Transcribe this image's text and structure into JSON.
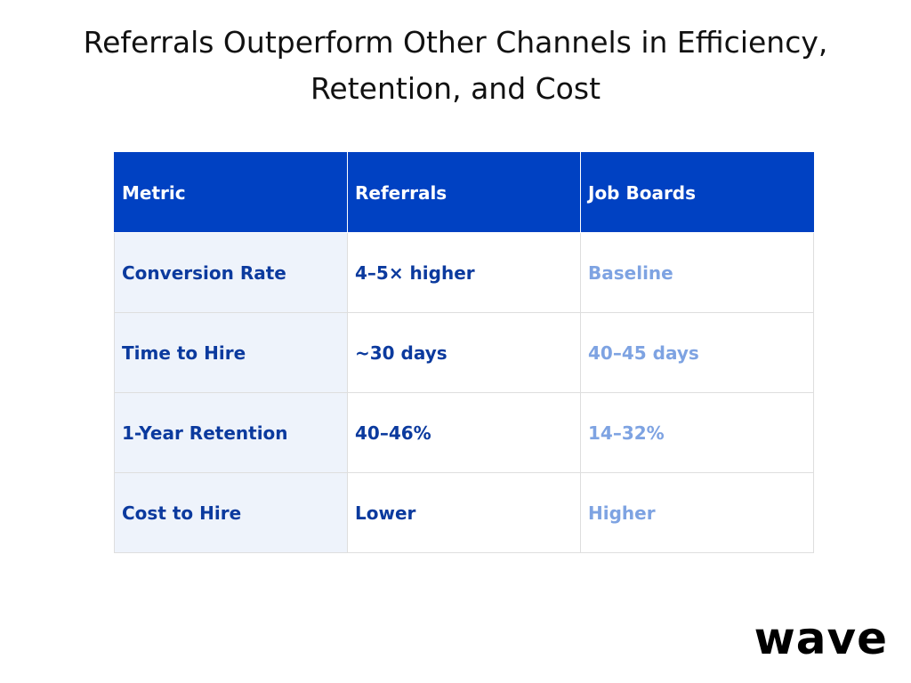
{
  "title": "Referrals Outperform Other Channels in Efficiency, Retention, and Cost",
  "chart_data": {
    "type": "table",
    "title": "Referrals Outperform Other Channels in Efficiency, Retention, and Cost",
    "columns": [
      "Metric",
      "Referrals",
      "Job Boards"
    ],
    "rows": [
      {
        "metric": "Conversion Rate",
        "referrals": "4–5× higher",
        "job_boards": "Baseline"
      },
      {
        "metric": "Time to Hire",
        "referrals": "~30 days",
        "job_boards": "40–45 days"
      },
      {
        "metric": "1-Year Retention",
        "referrals": "40–46%",
        "job_boards": "14–32%"
      },
      {
        "metric": "Cost to Hire",
        "referrals": "Lower",
        "job_boards": "Higher"
      }
    ]
  },
  "colors": {
    "header_bg": "#0041c2",
    "header_text": "#ffffff",
    "metric_bg": "#eef3fb",
    "dark_blue_text": "#0b3a9e",
    "light_blue_text": "#7ea3e2"
  },
  "logo": {
    "text": "wave"
  }
}
